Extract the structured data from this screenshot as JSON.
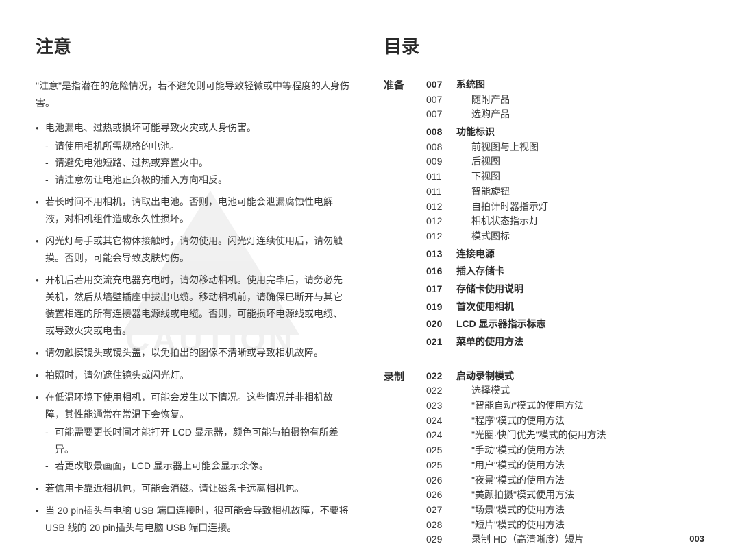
{
  "pageNumber": "003",
  "left": {
    "title": "注意",
    "intro": "\"注意\"是指潜在的危险情况，若不避免则可能导致轻微或中等程度的人身伤害。",
    "bullets": [
      {
        "text": "电池漏电、过热或损坏可能导致火灾或人身伤害。",
        "sub": [
          "请使用相机所需规格的电池。",
          "请避免电池短路、过热或弃置火中。",
          "请注意勿让电池正负极的插入方向相反。"
        ]
      },
      {
        "text": "若长时间不用相机，请取出电池。否则，电池可能会泄漏腐蚀性电解液，对相机组件造成永久性损坏。",
        "sub": []
      },
      {
        "text": "闪光灯与手或其它物体接触时，请勿使用。闪光灯连续使用后，请勿触摸。否则，可能会导致皮肤灼伤。",
        "sub": []
      },
      {
        "text": "开机后若用交流充电器充电时，请勿移动相机。使用完毕后，请务必先关机，然后从墙壁插座中拔出电缆。移动相机前，请确保已断开与其它装置相连的所有连接器电源线或电缆。否则，可能损坏电源线或电缆、或导致火灾或电击。",
        "sub": []
      },
      {
        "text": "请勿触摸镜头或镜头盖，以免拍出的图像不清晰或导致相机故障。",
        "sub": []
      },
      {
        "text": "拍照时，请勿遮住镜头或闪光灯。",
        "sub": []
      },
      {
        "text": "在低温环境下使用相机，可能会发生以下情况。这些情况并非相机故障，其性能通常在常温下会恢复。",
        "sub": [
          "可能需要更长时间才能打开 LCD 显示器，颜色可能与拍摄物有所差异。",
          "若更改取景画面，LCD 显示器上可能会显示余像。"
        ]
      },
      {
        "text": "若信用卡靠近相机包，可能会消磁。请让磁条卡远离相机包。",
        "sub": []
      },
      {
        "text": "当 20 pin插头与电脑 USB 端口连接时，很可能会导致相机故障，不要将 USB 线的 20 pin插头与电脑 USB 端口连接。",
        "sub": []
      }
    ],
    "watermark": "CAUTION"
  },
  "right": {
    "title": "目录",
    "sections": [
      {
        "label": "准备",
        "groups": [
          {
            "num": "007",
            "title": "系统图",
            "items": [
              {
                "num": "007",
                "title": "随附产品"
              },
              {
                "num": "007",
                "title": "选购产品"
              }
            ]
          },
          {
            "num": "008",
            "title": "功能标识",
            "items": [
              {
                "num": "008",
                "title": "前视图与上视图"
              },
              {
                "num": "009",
                "title": "后视图"
              },
              {
                "num": "011",
                "title": "下视图"
              },
              {
                "num": "011",
                "title": "智能旋钮"
              },
              {
                "num": "012",
                "title": "自拍计时器指示灯"
              },
              {
                "num": "012",
                "title": "相机状态指示灯"
              },
              {
                "num": "012",
                "title": "模式图标"
              }
            ]
          },
          {
            "num": "013",
            "title": "连接电源",
            "items": []
          },
          {
            "num": "016",
            "title": "插入存储卡",
            "items": []
          },
          {
            "num": "017",
            "title": "存储卡使用说明",
            "items": []
          },
          {
            "num": "019",
            "title": "首次使用相机",
            "items": []
          },
          {
            "num": "020",
            "title": "LCD 显示器指示标志",
            "items": []
          },
          {
            "num": "021",
            "title": "菜单的使用方法",
            "items": []
          }
        ]
      },
      {
        "label": "录制",
        "groups": [
          {
            "num": "022",
            "title": "启动录制模式",
            "items": [
              {
                "num": "022",
                "title": "选择模式"
              },
              {
                "num": "023",
                "title": "\"智能自动\"模式的使用方法"
              },
              {
                "num": "024",
                "title": "\"程序\"模式的使用方法"
              },
              {
                "num": "024",
                "title": "\"光圈·快门优先\"模式的使用方法"
              },
              {
                "num": "025",
                "title": "\"手动\"模式的使用方法"
              },
              {
                "num": "025",
                "title": "\"用户\"模式的使用方法"
              },
              {
                "num": "026",
                "title": "\"夜景\"模式的使用方法"
              },
              {
                "num": "026",
                "title": "\"美颜拍摄\"模式使用方法"
              },
              {
                "num": "027",
                "title": "\"场景\"模式的使用方法"
              },
              {
                "num": "028",
                "title": "\"短片\"模式的使用方法"
              },
              {
                "num": "029",
                "title": "录制 HD（高清晰度）短片"
              }
            ]
          }
        ]
      }
    ]
  }
}
